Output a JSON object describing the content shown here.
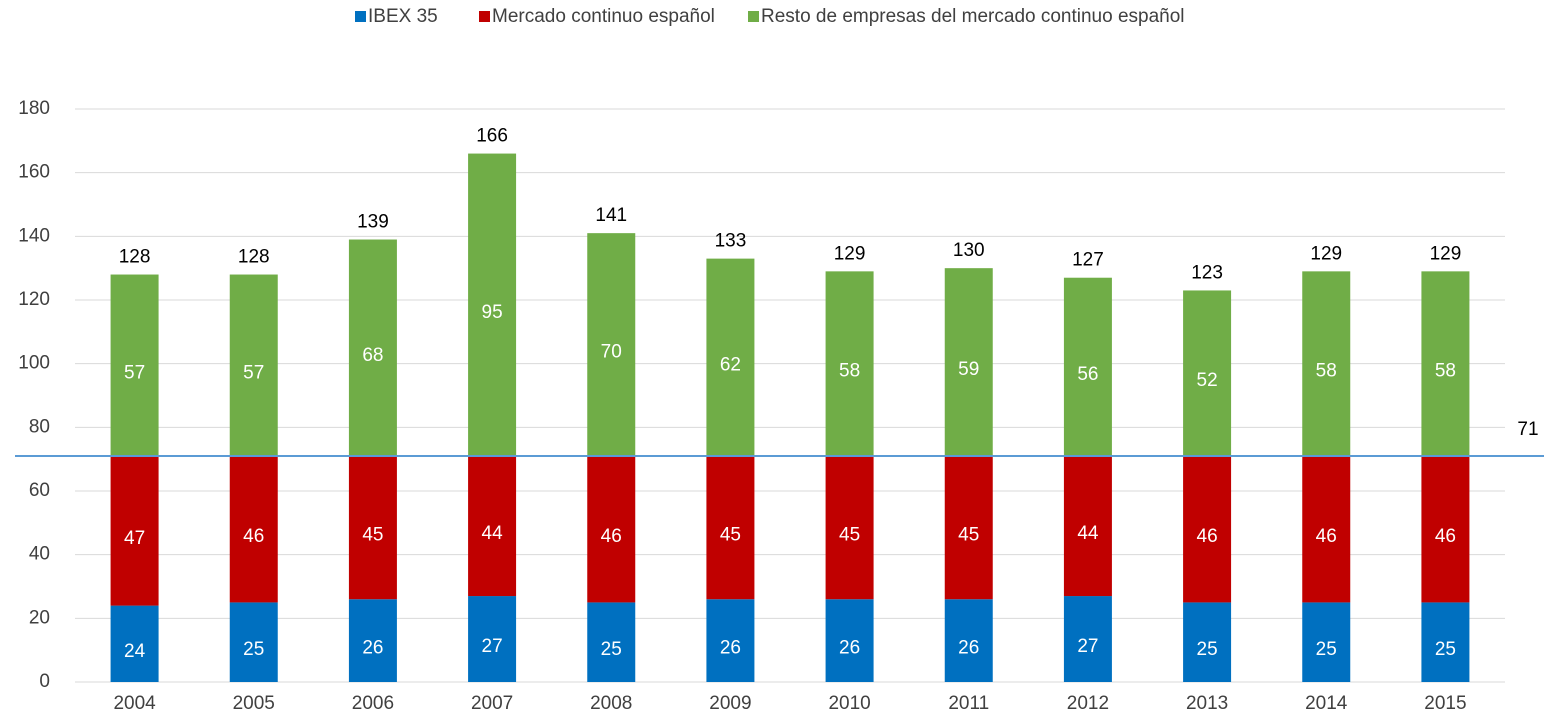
{
  "chart_data": {
    "type": "stacked_bar",
    "categories": [
      "2004",
      "2005",
      "2006",
      "2007",
      "2008",
      "2009",
      "2010",
      "2011",
      "2012",
      "2013",
      "2014",
      "2015"
    ],
    "series": [
      {
        "name": "IBEX 35",
        "color": "#0070c0",
        "values": [
          24,
          25,
          26,
          27,
          25,
          26,
          26,
          26,
          27,
          25,
          25,
          25
        ]
      },
      {
        "name": "Mercado continuo español",
        "color": "#c00000",
        "values": [
          47,
          46,
          45,
          44,
          46,
          45,
          45,
          45,
          44,
          46,
          46,
          46
        ]
      },
      {
        "name": "Resto de empresas del mercado continuo español",
        "color": "#70ad47",
        "values": [
          57,
          57,
          68,
          95,
          70,
          62,
          58,
          59,
          56,
          52,
          58,
          58
        ]
      }
    ],
    "totals": [
      128,
      128,
      139,
      166,
      141,
      133,
      129,
      130,
      127,
      123,
      129,
      129
    ],
    "reference_line": {
      "value": 71,
      "color": "#5b9bd5"
    },
    "ylim": [
      0,
      180
    ],
    "yticks": [
      0,
      20,
      40,
      60,
      80,
      100,
      120,
      140,
      160,
      180
    ],
    "grid": true,
    "legend": "top"
  }
}
